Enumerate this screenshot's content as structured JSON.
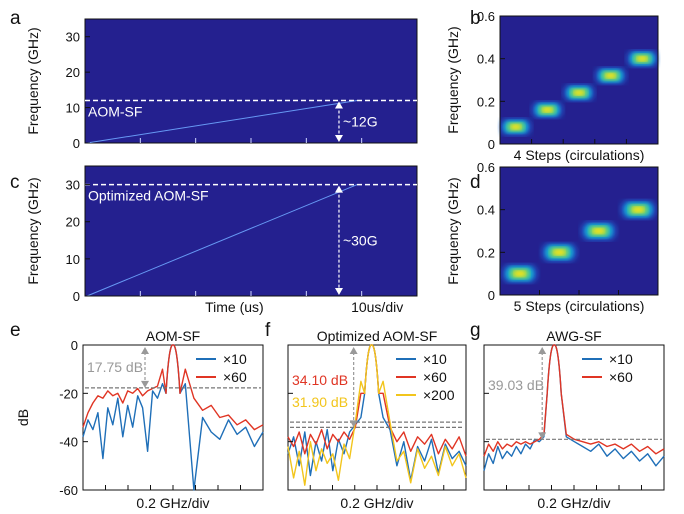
{
  "figure": {
    "panel_labels": [
      "a",
      "b",
      "c",
      "d",
      "e",
      "f",
      "g"
    ]
  },
  "chart_data": [
    {
      "panel": "a",
      "type": "heatmap",
      "ylabel": "Frequency (GHz)",
      "ylim": [
        0,
        35
      ],
      "yticks": [
        "0",
        "10",
        "20",
        "30"
      ],
      "background_color": "#24208f",
      "trace": {
        "y_start": 0,
        "y_end": 12,
        "color": "#6ea6ff"
      },
      "dashed_line": {
        "y": 12,
        "label": "AOM-SF"
      },
      "arrow_label": "~12G"
    },
    {
      "panel": "b",
      "type": "heatmap",
      "ylabel": "Frequency (GHz)",
      "xlabel": "4 Steps (circulations)",
      "ylim": [
        0,
        0.6
      ],
      "yticks": [
        "0",
        "0.2",
        "0.4",
        "0.6"
      ],
      "steps": [
        0.08,
        0.16,
        0.24,
        0.32,
        0.4
      ],
      "colormap": [
        "#24208f",
        "#1a6bd8",
        "#15b8c7",
        "#8bd65a",
        "#f2e31c"
      ]
    },
    {
      "panel": "c",
      "type": "heatmap",
      "ylabel": "Frequency (GHz)",
      "xlabel": "Time (us)",
      "xscale_label": "10us/div",
      "ylim": [
        0,
        35
      ],
      "yticks": [
        "0",
        "10",
        "20",
        "30"
      ],
      "background_color": "#24208f",
      "trace": {
        "y_start": 0,
        "y_end": 30,
        "color": "#6ea6ff"
      },
      "dashed_line": {
        "y": 30,
        "label": "Optimized AOM-SF"
      },
      "arrow_label": "~30G"
    },
    {
      "panel": "d",
      "type": "heatmap",
      "ylabel": "Frequency (GHz)",
      "xlabel": "5 Steps (circulations)",
      "ylim": [
        0,
        0.6
      ],
      "yticks": [
        "0",
        "0.2",
        "0.4",
        "0.6"
      ],
      "steps": [
        0.1,
        0.2,
        0.3,
        0.4
      ],
      "colormap": [
        "#24208f",
        "#1a6bd8",
        "#15b8c7",
        "#8bd65a",
        "#f2e31c"
      ]
    },
    {
      "panel": "e",
      "type": "line",
      "title": "AOM-SF",
      "ylabel": "dB",
      "xlabel": "0.2 GHz/div",
      "ylim": [
        -60,
        0
      ],
      "yticks": [
        "0",
        "-20",
        "-40",
        "-60"
      ],
      "series": [
        {
          "name": "×10",
          "color": "#1f6fb8",
          "values": [
            -38,
            -31,
            -35,
            -28,
            -47,
            -26,
            -33,
            -22,
            -38,
            -25,
            -34,
            -21,
            -26,
            -44,
            -19,
            -22,
            -16,
            0,
            -16,
            -60,
            -30,
            -36,
            -39,
            -31,
            -37,
            -34,
            -42,
            -36
          ]
        },
        {
          "name": "×60",
          "color": "#e03524",
          "values": [
            -34,
            -28,
            -24,
            -21,
            -22,
            -19,
            -21,
            -20,
            -24,
            -19,
            -20,
            -18,
            -21,
            -19,
            -18,
            -17,
            -10,
            0,
            -10,
            -22,
            -27,
            -25,
            -30,
            -29,
            -33,
            -31,
            -35,
            -33
          ]
        }
      ],
      "threshold_db": -17.75,
      "annotation": "17.75 dB",
      "annotation_color": "#999999"
    },
    {
      "panel": "f",
      "type": "line",
      "title": "Optimized AOM-SF",
      "xlabel": "0.2 GHz/div",
      "ylim": [
        -60,
        0
      ],
      "series": [
        {
          "name": "×10",
          "color": "#1f6fb8",
          "values": [
            -45,
            -38,
            -50,
            -36,
            -54,
            -40,
            -48,
            -35,
            -52,
            -39,
            -45,
            -36,
            -33,
            -30,
            0,
            -30,
            -35,
            -50,
            -40,
            -56,
            -42,
            -48,
            -39,
            -53,
            -41,
            -47,
            -44,
            -50
          ]
        },
        {
          "name": "×60",
          "color": "#e03524",
          "values": [
            -38,
            -42,
            -36,
            -45,
            -37,
            -41,
            -35,
            -43,
            -37,
            -40,
            -36,
            -39,
            -34,
            -20,
            0,
            -20,
            -34,
            -40,
            -36,
            -44,
            -38,
            -41,
            -37,
            -45,
            -39,
            -43,
            -38,
            -46
          ]
        },
        {
          "name": "×200",
          "color": "#f2c51c",
          "values": [
            -42,
            -55,
            -44,
            -58,
            -40,
            -52,
            -43,
            -49,
            -45,
            -56,
            -41,
            -47,
            -32,
            -15,
            0,
            -15,
            -32,
            -48,
            -44,
            -57,
            -43,
            -51,
            -46,
            -54,
            -42,
            -50,
            -45,
            -55
          ]
        }
      ],
      "annotations": [
        {
          "text": "34.10 dB",
          "color": "#e03524",
          "threshold_db": -34.1
        },
        {
          "text": "31.90 dB",
          "color": "#f2c51c",
          "threshold_db": -31.9
        }
      ]
    },
    {
      "panel": "g",
      "type": "line",
      "title": "AWG-SF",
      "xlabel": "0.2 GHz/div",
      "ylim": [
        -60,
        0
      ],
      "series": [
        {
          "name": "×10",
          "color": "#1f6fb8",
          "values": [
            -52,
            -45,
            -49,
            -42,
            -47,
            -44,
            -46,
            -42,
            -45,
            -41,
            -43,
            -39,
            -40,
            -38,
            0,
            -38,
            -40,
            -42,
            -44,
            -41,
            -46,
            -43,
            -47,
            -44,
            -48,
            -45,
            -50,
            -46
          ]
        },
        {
          "name": "×60",
          "color": "#e03524",
          "values": [
            -46,
            -41,
            -44,
            -40,
            -43,
            -41,
            -42,
            -40,
            -41,
            -40,
            -41,
            -40,
            -39,
            -37,
            0,
            -37,
            -39,
            -40,
            -41,
            -40,
            -42,
            -41,
            -43,
            -41,
            -44,
            -42,
            -45,
            -43
          ]
        }
      ],
      "threshold_db": -39.03,
      "annotation": "39.03 dB",
      "annotation_color": "#999999"
    }
  ]
}
